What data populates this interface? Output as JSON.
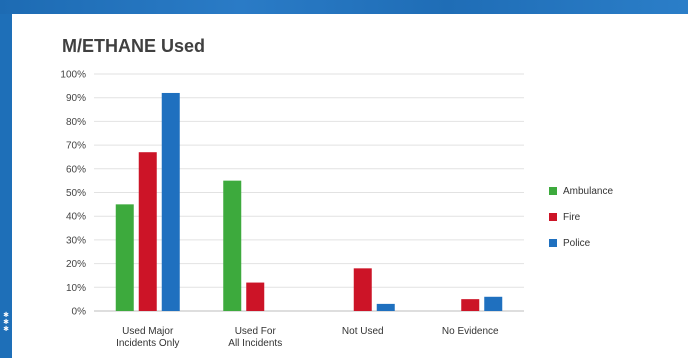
{
  "chart_data": {
    "type": "bar",
    "title": "M/ETHANE Used",
    "categories": [
      [
        "Used Major",
        "Incidents Only"
      ],
      [
        "Used For",
        "All Incidents"
      ],
      [
        "Not Used"
      ],
      [
        "No Evidence"
      ]
    ],
    "series": [
      {
        "name": "Ambulance",
        "color": "#3daa3d",
        "values": [
          45,
          55,
          0,
          0
        ]
      },
      {
        "name": "Fire",
        "color": "#cc1427",
        "values": [
          67,
          12,
          18,
          5
        ]
      },
      {
        "name": "Police",
        "color": "#1f70bf",
        "values": [
          92,
          0,
          3,
          6
        ]
      }
    ],
    "ylim": [
      0,
      100
    ],
    "yticks": [
      "0%",
      "10%",
      "20%",
      "30%",
      "40%",
      "50%",
      "60%",
      "70%",
      "80%",
      "90%",
      "100%"
    ],
    "grid": true,
    "legend_position": "right"
  }
}
